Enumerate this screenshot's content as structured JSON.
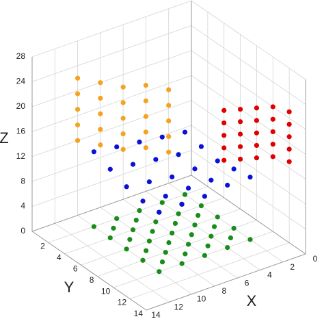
{
  "chart_data": {
    "type": "scatter3d",
    "x_label": "X",
    "y_label": "Y",
    "z_label": "Z",
    "xlim": [
      0,
      14
    ],
    "ylim": [
      0,
      14
    ],
    "zlim": [
      0,
      28
    ],
    "xticks": [
      0,
      2,
      4,
      6,
      8,
      10,
      12,
      14
    ],
    "yticks": [
      2,
      4,
      6,
      8,
      10,
      12,
      14
    ],
    "zticks": [
      0,
      4,
      8,
      12,
      16,
      20,
      24,
      28
    ],
    "grid": true,
    "series": [
      {
        "color": "#1a8c1a",
        "x": [
          2,
          2,
          2,
          2,
          2,
          3,
          3,
          3,
          3,
          4,
          4,
          4,
          4,
          4,
          5,
          5,
          5,
          5,
          6,
          6,
          6,
          6,
          6,
          7,
          7,
          7,
          7,
          8,
          8,
          8,
          8,
          8,
          9,
          9,
          9,
          9,
          10,
          10,
          10,
          10,
          10
        ],
        "y": [
          2,
          4,
          6,
          8,
          10,
          3,
          5,
          7,
          9,
          2,
          4,
          6,
          8,
          10,
          3,
          5,
          7,
          9,
          2,
          4,
          6,
          8,
          10,
          3,
          5,
          7,
          9,
          2,
          4,
          6,
          8,
          10,
          3,
          5,
          7,
          9,
          2,
          4,
          6,
          8,
          10
        ],
        "z": [
          0,
          0,
          0,
          0,
          0,
          0,
          0,
          0,
          0,
          0,
          0,
          0,
          0,
          0,
          0,
          0,
          0,
          0,
          0,
          0,
          0,
          0,
          0,
          0,
          0,
          0,
          0,
          0,
          0,
          0,
          0,
          0,
          0,
          0,
          0,
          0,
          0,
          0,
          0,
          0,
          0
        ]
      },
      {
        "color": "#0b12d6",
        "x": [
          2,
          2,
          2,
          2,
          2,
          4,
          4,
          4,
          4,
          4,
          6,
          6,
          6,
          6,
          6,
          8,
          8,
          8,
          8,
          8,
          10,
          10,
          10,
          10,
          10
        ],
        "y": [
          2,
          4,
          6,
          8,
          10,
          2,
          4,
          6,
          8,
          10,
          2,
          4,
          6,
          8,
          10,
          2,
          4,
          6,
          8,
          10,
          2,
          4,
          6,
          8,
          10
        ],
        "z": [
          10,
          9.5,
          9,
          9.5,
          10,
          10.5,
          9.5,
          9,
          9,
          10,
          11,
          10,
          9,
          9,
          9.5,
          11.5,
          10.5,
          9.5,
          9,
          9.5,
          12,
          11,
          10,
          9.5,
          9.5
        ]
      },
      {
        "color": "#f5a21f",
        "x": [
          2,
          2,
          2,
          2,
          2,
          4,
          4,
          4,
          4,
          4,
          6,
          6,
          6,
          6,
          6,
          8,
          8,
          8,
          8,
          8,
          10,
          10,
          10,
          10,
          10
        ],
        "y": [
          0,
          0,
          0,
          0,
          0,
          0,
          0,
          0,
          0,
          0,
          0,
          0,
          0,
          0,
          0,
          0,
          0,
          0,
          0,
          0,
          0,
          0,
          0,
          0,
          0
        ],
        "z": [
          5,
          7.5,
          10,
          12.5,
          15,
          7,
          9.5,
          12,
          14.5,
          17,
          8,
          10.5,
          13,
          15.5,
          18,
          10,
          12.5,
          15,
          17.5,
          20,
          12,
          14.5,
          17,
          19.5,
          22
        ]
      },
      {
        "color": "#e00000",
        "x": [
          0,
          0,
          0,
          0,
          0,
          0,
          0,
          0,
          0,
          0,
          0,
          0,
          0,
          0,
          0,
          0,
          0,
          0,
          0,
          0,
          0,
          0,
          0,
          0,
          0
        ],
        "y": [
          4,
          4,
          4,
          4,
          4,
          6,
          6,
          6,
          6,
          6,
          8,
          8,
          8,
          8,
          8,
          10,
          10,
          10,
          10,
          10,
          12,
          12,
          12,
          12,
          12
        ],
        "z": [
          6,
          8,
          10,
          12,
          14,
          8,
          10,
          12,
          14,
          16,
          10,
          12,
          14,
          16,
          18,
          12,
          14,
          16,
          18,
          20,
          13,
          15,
          17,
          19,
          21
        ]
      }
    ]
  }
}
